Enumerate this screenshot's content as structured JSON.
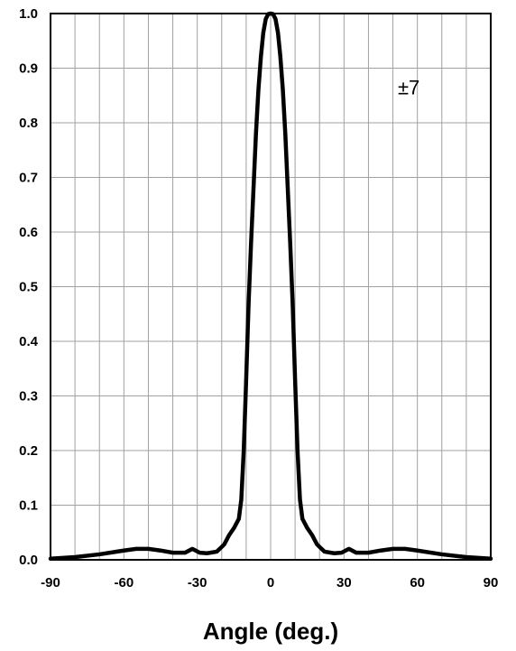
{
  "chart_data": {
    "type": "line",
    "title": "",
    "xlabel": "Angle (deg.)",
    "ylabel": "",
    "xlim": [
      -90,
      90
    ],
    "ylim": [
      0,
      1.0
    ],
    "grid": true,
    "legend": "none",
    "annotation": "±7",
    "x_ticks": [
      "-90",
      "-60",
      "-30",
      "0",
      "30",
      "60",
      "90"
    ],
    "y_ticks": [
      "0.0",
      "0.1",
      "0.2",
      "0.3",
      "0.4",
      "0.5",
      "0.6",
      "0.7",
      "0.8",
      "0.9",
      "1.0"
    ],
    "line_color": "#000000",
    "grid_color": "#a0a0a0",
    "series": [
      {
        "x": [
          -90,
          -80,
          -70,
          -60,
          -55,
          -50,
          -45,
          -40,
          -35,
          -32,
          -29,
          -26,
          -22,
          -19,
          -17,
          -15,
          -13,
          -12,
          -11,
          -10,
          -9,
          -8,
          -7,
          -6,
          -5,
          -4,
          -3,
          -2,
          -1,
          0,
          1,
          2,
          3,
          4,
          5,
          6,
          7,
          8,
          9,
          10,
          11,
          12,
          13,
          15,
          17,
          19,
          22,
          26,
          29,
          32,
          35,
          40,
          45,
          50,
          55,
          60,
          70,
          80,
          90
        ],
        "y": [
          0.002,
          0.005,
          0.01,
          0.017,
          0.02,
          0.02,
          0.017,
          0.013,
          0.013,
          0.02,
          0.013,
          0.012,
          0.015,
          0.028,
          0.045,
          0.058,
          0.075,
          0.11,
          0.2,
          0.33,
          0.47,
          0.58,
          0.68,
          0.78,
          0.86,
          0.92,
          0.965,
          0.99,
          0.999,
          1.0,
          0.999,
          0.99,
          0.965,
          0.92,
          0.86,
          0.78,
          0.68,
          0.58,
          0.47,
          0.33,
          0.2,
          0.11,
          0.075,
          0.058,
          0.045,
          0.028,
          0.015,
          0.012,
          0.013,
          0.02,
          0.013,
          0.013,
          0.017,
          0.02,
          0.02,
          0.017,
          0.01,
          0.005,
          0.002
        ]
      }
    ]
  }
}
